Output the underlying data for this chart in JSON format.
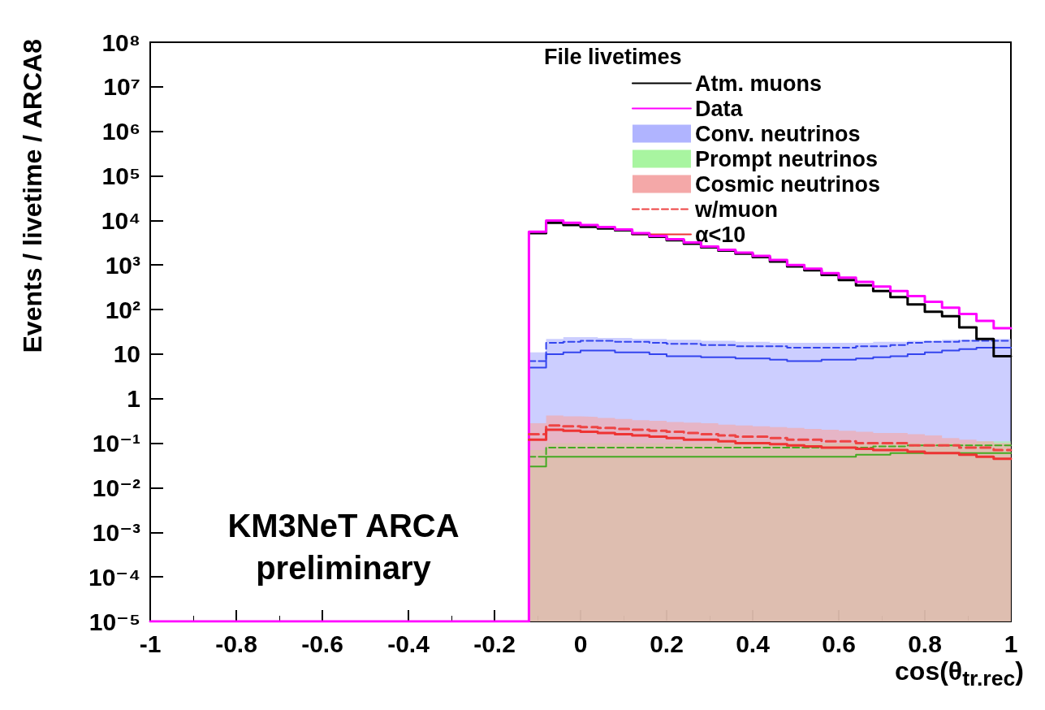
{
  "chart_data": {
    "type": "step",
    "xlabel": "cos(θ$_{tr.rec}$)",
    "ylabel": "Events / livetime / ARCA8",
    "legend_title": "File livetimes",
    "legend": "top right",
    "log": "y",
    "grid": false,
    "annotations": [
      "KM3NeT ARCA\npreliminary"
    ],
    "xlim": [
      -1,
      1
    ],
    "xticks": [
      -1,
      -0.8,
      -0.6,
      -0.4,
      -0.2,
      0,
      0.2,
      0.4,
      0.6,
      0.8,
      1
    ],
    "ylim": [
      1e-05,
      100000000
    ],
    "yticks": [
      {
        "value": 1e-05,
        "label": "10⁻⁵"
      },
      {
        "value": 0.0001,
        "label": "10⁻⁴"
      },
      {
        "value": 0.001,
        "label": "10⁻³"
      },
      {
        "value": 0.01,
        "label": "10⁻²"
      },
      {
        "value": 0.1,
        "label": "10⁻¹"
      },
      1,
      10,
      {
        "value": 100,
        "label": "10²"
      },
      {
        "value": 1000,
        "label": "10³"
      },
      {
        "value": 10000,
        "label": "10⁴"
      },
      {
        "value": 100000,
        "label": "10⁵"
      },
      {
        "value": 1000000,
        "label": "10⁶"
      },
      {
        "value": 10000000,
        "label": "10⁷"
      },
      {
        "value": 100000000,
        "label": "10⁸"
      }
    ],
    "x": [
      -1,
      -0.96,
      -0.92,
      -0.88,
      -0.84,
      -0.8,
      -0.76,
      -0.72,
      -0.68,
      -0.64,
      -0.6,
      -0.56,
      -0.52,
      -0.48,
      -0.44,
      -0.4,
      -0.36,
      -0.32,
      -0.28,
      -0.24,
      -0.2,
      -0.16,
      -0.12,
      -0.08,
      -0.04,
      0,
      0.04,
      0.08,
      0.12,
      0.16,
      0.2,
      0.24,
      0.28,
      0.32,
      0.36,
      0.4,
      0.44,
      0.48,
      0.52,
      0.56,
      0.6,
      0.64,
      0.68,
      0.72,
      0.76,
      0.8,
      0.84,
      0.88,
      0.92,
      0.96,
      1
    ],
    "series": [
      {
        "name": "Atm. muons",
        "type": "step",
        "color": "#000000",
        "line_style": "solid",
        "values": [
          null,
          null,
          null,
          null,
          null,
          null,
          null,
          null,
          null,
          null,
          null,
          null,
          null,
          null,
          null,
          null,
          null,
          null,
          null,
          null,
          null,
          null,
          5200,
          8900,
          7900,
          7200,
          6600,
          6000,
          5000,
          4300,
          3600,
          3000,
          2500,
          2100,
          1800,
          1500,
          1200,
          930,
          760,
          600,
          460,
          350,
          260,
          190,
          130,
          89,
          71,
          40,
          22,
          9,
          9
        ]
      },
      {
        "name": "Data",
        "type": "step",
        "color": "#ff00ff",
        "line_style": "solid",
        "values": [
          1e-05,
          1e-05,
          1e-05,
          1e-05,
          1e-05,
          1e-05,
          1e-05,
          1e-05,
          1e-05,
          1e-05,
          1e-05,
          1e-05,
          1e-05,
          1e-05,
          1e-05,
          1e-05,
          1e-05,
          1e-05,
          1e-05,
          1e-05,
          1e-05,
          1e-05,
          5600,
          10000,
          8900,
          7900,
          7100,
          6300,
          5200,
          4500,
          3800,
          3200,
          2600,
          2200,
          1900,
          1600,
          1300,
          1000,
          830,
          660,
          520,
          420,
          330,
          260,
          200,
          150,
          110,
          80,
          56,
          38,
          38
        ]
      },
      {
        "name": "Conv. neutrinos",
        "type": "area",
        "color": "#b0b4ff",
        "values": [
          null,
          null,
          null,
          null,
          null,
          null,
          null,
          null,
          null,
          null,
          null,
          null,
          null,
          null,
          null,
          null,
          null,
          null,
          null,
          null,
          null,
          null,
          11,
          22,
          24,
          24,
          23,
          23,
          22,
          22,
          21,
          21,
          20,
          20,
          19,
          19,
          18,
          18,
          18,
          18,
          18,
          18,
          19,
          19,
          20,
          20,
          21,
          21,
          22,
          22,
          22
        ]
      },
      {
        "name": "Prompt neutrinos",
        "type": "area",
        "color": "#a8f5a0",
        "values": [
          null,
          null,
          null,
          null,
          null,
          null,
          null,
          null,
          null,
          null,
          null,
          null,
          null,
          null,
          null,
          null,
          null,
          null,
          null,
          null,
          null,
          null,
          0.07,
          0.1,
          0.1,
          0.1,
          0.1,
          0.1,
          0.1,
          0.1,
          0.1,
          0.1,
          0.1,
          0.1,
          0.1,
          0.1,
          0.1,
          0.1,
          0.1,
          0.1,
          0.1,
          0.1,
          0.1,
          0.1,
          0.1,
          0.1,
          0.1,
          0.1,
          0.11,
          0.11,
          0.11
        ]
      },
      {
        "name": "Cosmic neutrinos",
        "type": "area",
        "color": "#f4a8a8",
        "values": [
          null,
          null,
          null,
          null,
          null,
          null,
          null,
          null,
          null,
          null,
          null,
          null,
          null,
          null,
          null,
          null,
          null,
          null,
          null,
          null,
          null,
          null,
          0.28,
          0.42,
          0.4,
          0.39,
          0.37,
          0.35,
          0.33,
          0.32,
          0.3,
          0.29,
          0.28,
          0.26,
          0.25,
          0.24,
          0.23,
          0.22,
          0.21,
          0.2,
          0.19,
          0.18,
          0.17,
          0.17,
          0.16,
          0.15,
          0.13,
          0.12,
          0.11,
          0.1,
          0.1
        ]
      },
      {
        "type": "step",
        "color": "#3344ee",
        "line_style": "dashed",
        "values": [
          null,
          null,
          null,
          null,
          null,
          null,
          null,
          null,
          null,
          null,
          null,
          null,
          null,
          null,
          null,
          null,
          null,
          null,
          null,
          null,
          null,
          null,
          7,
          18,
          19,
          20,
          20,
          19,
          19,
          18,
          17,
          17,
          16,
          16,
          15,
          15,
          15,
          14,
          14,
          14,
          14,
          15,
          15,
          16,
          18,
          19,
          19,
          20,
          20,
          20,
          20
        ]
      },
      {
        "type": "step",
        "color": "#3344ee",
        "line_style": "solid",
        "values": [
          null,
          null,
          null,
          null,
          null,
          null,
          null,
          null,
          null,
          null,
          null,
          null,
          null,
          null,
          null,
          null,
          null,
          null,
          null,
          null,
          null,
          null,
          5,
          10,
          11,
          12,
          12,
          11,
          11,
          10,
          9,
          9,
          8.5,
          8.5,
          8,
          8,
          7.5,
          7,
          7,
          7.5,
          7.5,
          8,
          8.5,
          9,
          10,
          11,
          12,
          13,
          14,
          14,
          14
        ]
      },
      {
        "type": "step",
        "color": "#44aa22",
        "line_style": "dashed",
        "values": [
          null,
          null,
          null,
          null,
          null,
          null,
          null,
          null,
          null,
          null,
          null,
          null,
          null,
          null,
          null,
          null,
          null,
          null,
          null,
          null,
          null,
          null,
          0.05,
          0.08,
          0.08,
          0.08,
          0.08,
          0.08,
          0.08,
          0.08,
          0.08,
          0.08,
          0.08,
          0.08,
          0.08,
          0.08,
          0.08,
          0.08,
          0.08,
          0.08,
          0.08,
          0.08,
          0.085,
          0.085,
          0.09,
          0.09,
          0.09,
          0.09,
          0.09,
          0.09,
          0.09
        ]
      },
      {
        "type": "step",
        "color": "#44aa22",
        "line_style": "solid",
        "values": [
          null,
          null,
          null,
          null,
          null,
          null,
          null,
          null,
          null,
          null,
          null,
          null,
          null,
          null,
          null,
          null,
          null,
          null,
          null,
          null,
          null,
          null,
          0.03,
          0.05,
          0.05,
          0.05,
          0.05,
          0.05,
          0.05,
          0.05,
          0.05,
          0.05,
          0.05,
          0.05,
          0.05,
          0.05,
          0.05,
          0.05,
          0.05,
          0.05,
          0.05,
          0.055,
          0.055,
          0.06,
          0.06,
          0.06,
          0.06,
          0.06,
          0.06,
          0.06,
          0.06
        ]
      },
      {
        "name": "w/muon",
        "type": "step",
        "color": "#ee4444",
        "line_style": "dashed",
        "values": [
          null,
          null,
          null,
          null,
          null,
          null,
          null,
          null,
          null,
          null,
          null,
          null,
          null,
          null,
          null,
          null,
          null,
          null,
          null,
          null,
          null,
          null,
          0.16,
          0.25,
          0.24,
          0.23,
          0.22,
          0.21,
          0.2,
          0.19,
          0.18,
          0.17,
          0.16,
          0.15,
          0.14,
          0.14,
          0.13,
          0.12,
          0.12,
          0.11,
          0.11,
          0.1,
          0.1,
          0.1,
          0.09,
          0.09,
          0.09,
          0.08,
          0.08,
          0.07,
          0.07
        ]
      },
      {
        "name": "α<10",
        "type": "step",
        "color": "#ee3333",
        "line_style": "solid",
        "values": [
          null,
          null,
          null,
          null,
          null,
          null,
          null,
          null,
          null,
          null,
          null,
          null,
          null,
          null,
          null,
          null,
          null,
          null,
          null,
          null,
          null,
          null,
          0.12,
          0.2,
          0.19,
          0.18,
          0.17,
          0.16,
          0.15,
          0.14,
          0.13,
          0.12,
          0.12,
          0.11,
          0.1,
          0.1,
          0.095,
          0.09,
          0.085,
          0.08,
          0.08,
          0.075,
          0.07,
          0.07,
          0.065,
          0.06,
          0.06,
          0.055,
          0.05,
          0.045,
          0.045
        ]
      }
    ]
  }
}
